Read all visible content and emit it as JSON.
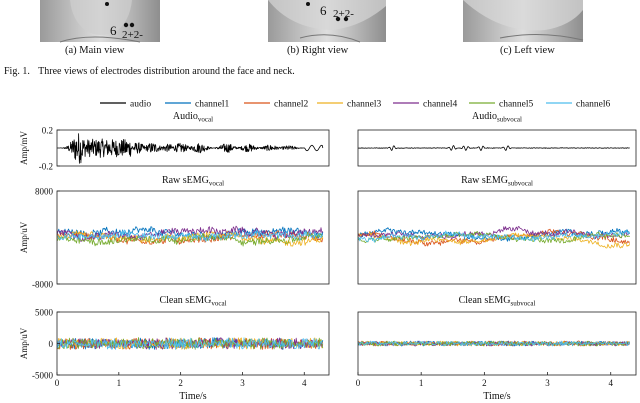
{
  "photos": [
    {
      "label": "(a) Main view",
      "markers": [
        {
          "text": "6"
        },
        {
          "text": "2+2-"
        }
      ]
    },
    {
      "label": "(b) Right view",
      "markers": [
        {
          "text": "6"
        },
        {
          "text": "2+2-"
        }
      ]
    },
    {
      "label": "(c) Left view",
      "markers": []
    }
  ],
  "figure_caption": {
    "label": "Fig. 1.",
    "text": "Three views of electrodes distribution around the face and neck."
  },
  "colors": {
    "audio": "#000000",
    "channel1": "#0072bd",
    "channel2": "#d95319",
    "channel3": "#edb120",
    "channel4": "#7e2f8e",
    "channel5": "#77ac30",
    "channel6": "#4dbeee"
  },
  "chart_data": [
    {
      "type": "line",
      "title": "Audio",
      "title_sub": "vocal",
      "ylabel": "Amp/mV",
      "ylim": [
        -0.2,
        0.2
      ],
      "yticks": [
        "0.2",
        "-0.2"
      ],
      "xlim": [
        0,
        4.4
      ],
      "xticks": [],
      "series": [
        {
          "name": "audio",
          "kind": "audio_vocal"
        }
      ]
    },
    {
      "type": "line",
      "title": "Audio",
      "title_sub": "subvocal",
      "ylabel": "",
      "ylim": [
        -0.2,
        0.2
      ],
      "yticks": [],
      "xlim": [
        0,
        4.4
      ],
      "xticks": [],
      "series": [
        {
          "name": "audio",
          "kind": "audio_subvocal"
        }
      ]
    },
    {
      "type": "line",
      "title": "Raw sEMG",
      "title_sub": "vocal",
      "ylabel": "Amp/uV",
      "ylim": [
        -8000,
        8000
      ],
      "yticks": [
        "8000",
        "-8000"
      ],
      "xlim": [
        0,
        4.4
      ],
      "xticks": [],
      "series": [
        {
          "name": "channel1"
        },
        {
          "name": "channel2"
        },
        {
          "name": "channel3"
        },
        {
          "name": "channel4"
        },
        {
          "name": "channel5"
        },
        {
          "name": "channel6"
        }
      ]
    },
    {
      "type": "line",
      "title": "Raw sEMG",
      "title_sub": "subvocal",
      "ylabel": "",
      "ylim": [
        -8000,
        8000
      ],
      "yticks": [],
      "xlim": [
        0,
        4.4
      ],
      "xticks": [],
      "series": [
        {
          "name": "channel1"
        },
        {
          "name": "channel2"
        },
        {
          "name": "channel3"
        },
        {
          "name": "channel4"
        },
        {
          "name": "channel5"
        },
        {
          "name": "channel6"
        }
      ]
    },
    {
      "type": "line",
      "title": "Clean sEMG",
      "title_sub": "vocal",
      "ylabel": "Amp/uV",
      "ylim": [
        -5000,
        5000
      ],
      "yticks": [
        "5000",
        "0",
        "-5000"
      ],
      "xlim": [
        0,
        4.4
      ],
      "xticks": [
        "0",
        "1",
        "2",
        "3",
        "4"
      ],
      "xlabel": "Time/s",
      "series": [
        {
          "name": "channel1"
        },
        {
          "name": "channel2"
        },
        {
          "name": "channel3"
        },
        {
          "name": "channel4"
        },
        {
          "name": "channel5"
        },
        {
          "name": "channel6"
        }
      ]
    },
    {
      "type": "line",
      "title": "Clean sEMG",
      "title_sub": "subvocal",
      "ylabel": "",
      "ylim": [
        -5000,
        5000
      ],
      "yticks": [],
      "xlim": [
        0,
        4.4
      ],
      "xticks": [
        "0",
        "1",
        "2",
        "3",
        "4"
      ],
      "xlabel": "Time/s",
      "series": [
        {
          "name": "channel1"
        },
        {
          "name": "channel2"
        },
        {
          "name": "channel3"
        },
        {
          "name": "channel4"
        },
        {
          "name": "channel5"
        },
        {
          "name": "channel6"
        }
      ]
    }
  ],
  "legend": [
    "audio",
    "channel1",
    "channel2",
    "channel3",
    "channel4",
    "channel5",
    "channel6"
  ]
}
